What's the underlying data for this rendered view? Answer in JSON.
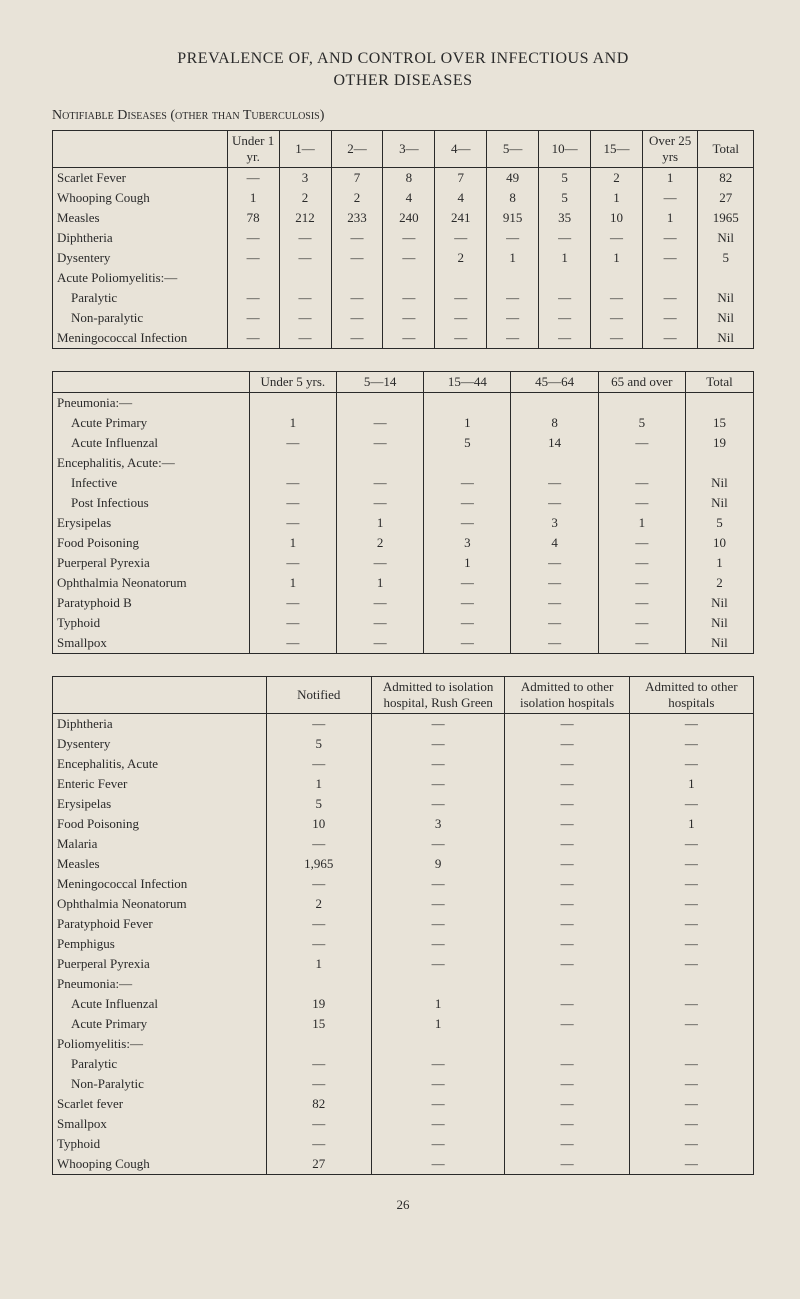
{
  "page": {
    "title_line1": "PREVALENCE OF, AND CONTROL OVER INFECTIOUS AND",
    "title_line2": "OTHER DISEASES",
    "subtitle1": "Notifiable Diseases (other than Tuberculosis)",
    "page_number": "26"
  },
  "colors": {
    "bg": "#e8e3d8",
    "text": "#2a2a2a",
    "rule": "#2a2a2a"
  },
  "fonts": {
    "family": "Times New Roman",
    "title_pt": 16,
    "body_pt": 13
  },
  "table1": {
    "columns": [
      "",
      "Under 1 yr.",
      "1—",
      "2—",
      "3—",
      "4—",
      "5—",
      "10—",
      "15—",
      "Over 25 yrs",
      "Total"
    ],
    "rows": [
      {
        "label": "Scarlet Fever",
        "vals": [
          "—",
          "3",
          "7",
          "8",
          "7",
          "49",
          "5",
          "2",
          "1",
          "82"
        ]
      },
      {
        "label": "Whooping Cough",
        "vals": [
          "1",
          "2",
          "2",
          "4",
          "4",
          "8",
          "5",
          "1",
          "—",
          "27"
        ]
      },
      {
        "label": "Measles",
        "vals": [
          "78",
          "212",
          "233",
          "240",
          "241",
          "915",
          "35",
          "10",
          "1",
          "1965"
        ]
      },
      {
        "label": "Diphtheria",
        "vals": [
          "—",
          "—",
          "—",
          "—",
          "—",
          "—",
          "—",
          "—",
          "—",
          "Nil"
        ]
      },
      {
        "label": "Dysentery",
        "vals": [
          "—",
          "—",
          "—",
          "—",
          "2",
          "1",
          "1",
          "1",
          "—",
          "5"
        ]
      },
      {
        "label": "Acute Poliomyelitis:—",
        "vals": [
          "",
          "",
          "",
          "",
          "",
          "",
          "",
          "",
          "",
          ""
        ]
      },
      {
        "label": "Paralytic",
        "indent": true,
        "vals": [
          "—",
          "—",
          "—",
          "—",
          "—",
          "—",
          "—",
          "—",
          "—",
          "Nil"
        ]
      },
      {
        "label": "Non-paralytic",
        "indent": true,
        "vals": [
          "—",
          "—",
          "—",
          "—",
          "—",
          "—",
          "—",
          "—",
          "—",
          "Nil"
        ]
      },
      {
        "label": "Meningococcal Infection",
        "vals": [
          "—",
          "—",
          "—",
          "—",
          "—",
          "—",
          "—",
          "—",
          "—",
          "Nil"
        ]
      }
    ]
  },
  "table2": {
    "columns": [
      "",
      "Under 5 yrs.",
      "5—14",
      "15—44",
      "45—64",
      "65 and over",
      "Total"
    ],
    "rows": [
      {
        "label": "Pneumonia:—",
        "vals": [
          "",
          "",
          "",
          "",
          "",
          ""
        ]
      },
      {
        "label": "Acute Primary",
        "indent": true,
        "vals": [
          "1",
          "—",
          "1",
          "8",
          "5",
          "15"
        ]
      },
      {
        "label": "Acute Influenzal",
        "indent": true,
        "vals": [
          "—",
          "—",
          "5",
          "14",
          "—",
          "19"
        ]
      },
      {
        "label": "Encephalitis, Acute:—",
        "vals": [
          "",
          "",
          "",
          "",
          "",
          ""
        ]
      },
      {
        "label": "Infective",
        "indent": true,
        "vals": [
          "—",
          "—",
          "—",
          "—",
          "—",
          "Nil"
        ]
      },
      {
        "label": "Post Infectious",
        "indent": true,
        "vals": [
          "—",
          "—",
          "—",
          "—",
          "—",
          "Nil"
        ]
      },
      {
        "label": "Erysipelas",
        "vals": [
          "—",
          "1",
          "—",
          "3",
          "1",
          "5"
        ]
      },
      {
        "label": "Food Poisoning",
        "vals": [
          "1",
          "2",
          "3",
          "4",
          "—",
          "10"
        ]
      },
      {
        "label": "Puerperal Pyrexia",
        "vals": [
          "—",
          "—",
          "1",
          "—",
          "—",
          "1"
        ]
      },
      {
        "label": "Ophthalmia Neonatorum",
        "vals": [
          "1",
          "1",
          "—",
          "—",
          "—",
          "2"
        ]
      },
      {
        "label": "Paratyphoid B",
        "vals": [
          "—",
          "—",
          "—",
          "—",
          "—",
          "Nil"
        ]
      },
      {
        "label": "Typhoid",
        "vals": [
          "—",
          "—",
          "—",
          "—",
          "—",
          "Nil"
        ]
      },
      {
        "label": "Smallpox",
        "vals": [
          "—",
          "—",
          "—",
          "—",
          "—",
          "Nil"
        ]
      }
    ]
  },
  "table3": {
    "columns": [
      "",
      "Notified",
      "Admitted to isolation hospital, Rush Green",
      "Admitted to other isolation hospitals",
      "Admitted to other hospitals"
    ],
    "rows": [
      {
        "label": "Diphtheria",
        "vals": [
          "—",
          "—",
          "—",
          "—"
        ]
      },
      {
        "label": "Dysentery",
        "vals": [
          "5",
          "—",
          "—",
          "—"
        ]
      },
      {
        "label": "Encephalitis, Acute",
        "vals": [
          "—",
          "—",
          "—",
          "—"
        ]
      },
      {
        "label": "Enteric Fever",
        "vals": [
          "1",
          "—",
          "—",
          "1"
        ]
      },
      {
        "label": "Erysipelas",
        "vals": [
          "5",
          "—",
          "—",
          "—"
        ]
      },
      {
        "label": "Food Poisoning",
        "vals": [
          "10",
          "3",
          "—",
          "1"
        ]
      },
      {
        "label": "Malaria",
        "vals": [
          "—",
          "—",
          "—",
          "—"
        ]
      },
      {
        "label": "Measles",
        "vals": [
          "1,965",
          "9",
          "—",
          "—"
        ]
      },
      {
        "label": "Meningococcal Infection",
        "vals": [
          "—",
          "—",
          "—",
          "—"
        ]
      },
      {
        "label": "Ophthalmia Neonatorum",
        "vals": [
          "2",
          "—",
          "—",
          "—"
        ]
      },
      {
        "label": "Paratyphoid Fever",
        "vals": [
          "—",
          "—",
          "—",
          "—"
        ]
      },
      {
        "label": "Pemphigus",
        "vals": [
          "—",
          "—",
          "—",
          "—"
        ]
      },
      {
        "label": "Puerperal Pyrexia",
        "vals": [
          "1",
          "—",
          "—",
          "—"
        ]
      },
      {
        "label": "Pneumonia:—",
        "vals": [
          "",
          "",
          "",
          ""
        ]
      },
      {
        "label": "Acute Influenzal",
        "indent": true,
        "vals": [
          "19",
          "1",
          "—",
          "—"
        ]
      },
      {
        "label": "Acute Primary",
        "indent": true,
        "vals": [
          "15",
          "1",
          "—",
          "—"
        ]
      },
      {
        "label": "Poliomyelitis:—",
        "vals": [
          "",
          "",
          "",
          ""
        ]
      },
      {
        "label": "Paralytic",
        "indent": true,
        "vals": [
          "—",
          "—",
          "—",
          "—"
        ]
      },
      {
        "label": "Non-Paralytic",
        "indent": true,
        "vals": [
          "—",
          "—",
          "—",
          "—"
        ]
      },
      {
        "label": "Scarlet fever",
        "vals": [
          "82",
          "—",
          "—",
          "—"
        ]
      },
      {
        "label": "Smallpox",
        "vals": [
          "—",
          "—",
          "—",
          "—"
        ]
      },
      {
        "label": "Typhoid",
        "vals": [
          "—",
          "—",
          "—",
          "—"
        ]
      },
      {
        "label": "Whooping Cough",
        "vals": [
          "27",
          "—",
          "—",
          "—"
        ]
      }
    ]
  }
}
